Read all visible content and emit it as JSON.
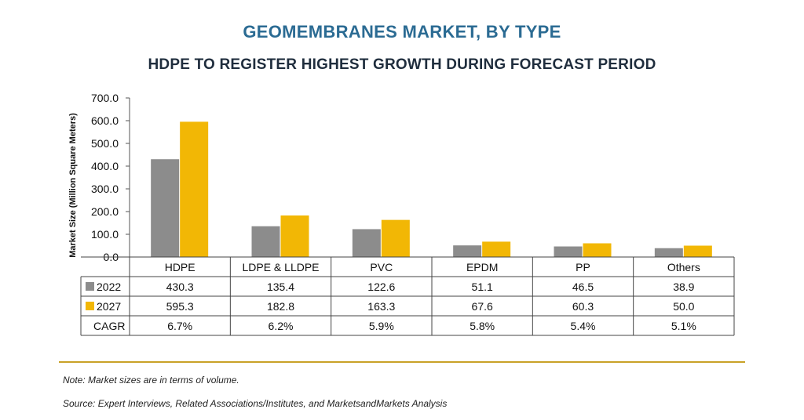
{
  "header": {
    "title": "GEOMEMBRANES MARKET, BY TYPE",
    "subtitle": "HDPE TO REGISTER HIGHEST GROWTH DURING FORECAST PERIOD"
  },
  "chart_data": {
    "type": "bar",
    "title": "GEOMEMBRANES MARKET, BY TYPE",
    "subtitle": "HDPE TO REGISTER HIGHEST GROWTH DURING FORECAST PERIOD",
    "ylabel": "Market Size (Million Square Meters)",
    "xlabel": "",
    "ylim": [
      0,
      700
    ],
    "yticks": [
      "0.0",
      "100.0",
      "200.0",
      "300.0",
      "400.0",
      "500.0",
      "600.0",
      "700.0"
    ],
    "grid": false,
    "categories": [
      "HDPE",
      "LDPE & LLDPE",
      "PVC",
      "EPDM",
      "PP",
      "Others"
    ],
    "series": [
      {
        "name": "2022",
        "color": "#8c8c8c",
        "values": [
          430.3,
          135.4,
          122.6,
          51.1,
          46.5,
          38.9
        ],
        "labels": [
          "430.3",
          "135.4",
          "122.6",
          "51.1",
          "46.5",
          "38.9"
        ]
      },
      {
        "name": "2027",
        "color": "#f2b705",
        "values": [
          595.3,
          182.8,
          163.3,
          67.6,
          60.3,
          50.0
        ],
        "labels": [
          "595.3",
          "182.8",
          "163.3",
          "67.6",
          "60.3",
          "50.0"
        ]
      }
    ],
    "cagr_label": "CAGR",
    "cagr": [
      "6.7%",
      "6.2%",
      "5.9%",
      "5.8%",
      "5.4%",
      "5.1%"
    ]
  },
  "notes": {
    "note": "Note: Market sizes are in terms of volume.",
    "source": "Source: Expert Interviews, Related Associations/Institutes, and MarketsandMarkets Analysis"
  },
  "colors": {
    "title": "#2b6b93",
    "accent_rule": "#c9a227"
  }
}
